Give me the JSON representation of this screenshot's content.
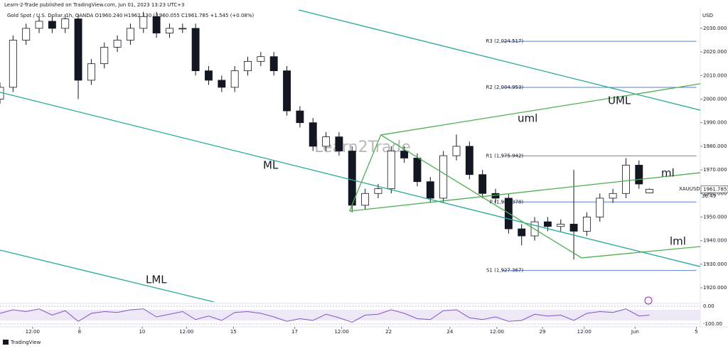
{
  "chart_data": {
    "type": "candlestick",
    "title": "Learn-2-Trade published on TradingView.com, Jun 01, 2023 13:23 UTC+3",
    "subtitle": "Gold Spot / U.S. Dollar, 1h, OANDA  O1960.240 H1962.130 L1960.055 C1961.785 +1.545 (+0.08%)",
    "watermark": "Learn2Trade",
    "currency": "USD",
    "symbol": "XAUUSD",
    "last_price": {
      "value": 1961.785,
      "label": "1961.785"
    },
    "countdown": "36:49",
    "footer": "TradingView",
    "xlim": [
      0,
      537
    ],
    "ylim": [
      1914,
      2039
    ],
    "yticks": [
      {
        "value": 1920,
        "label": "1920.000"
      },
      {
        "value": 1930,
        "label": "1930.000"
      },
      {
        "value": 1940,
        "label": "1940.000"
      },
      {
        "value": 1950,
        "label": "1950.000"
      },
      {
        "value": 1960,
        "label": "1960.000"
      },
      {
        "value": 1970,
        "label": "1970.000"
      },
      {
        "value": 1980,
        "label": "1980.000"
      },
      {
        "value": 1990,
        "label": "1990.000"
      },
      {
        "value": 2000,
        "label": "2000.000"
      },
      {
        "value": 2010,
        "label": "2010.000"
      },
      {
        "value": 2020,
        "label": "2020.000"
      },
      {
        "value": 2030,
        "label": "2030.000"
      }
    ],
    "xticks": [
      {
        "value": 25,
        "label": "12:00"
      },
      {
        "value": 61,
        "label": "8"
      },
      {
        "value": 109,
        "label": "10"
      },
      {
        "value": 143,
        "label": "12:00"
      },
      {
        "value": 179,
        "label": "15"
      },
      {
        "value": 226,
        "label": "17"
      },
      {
        "value": 262,
        "label": "12:00"
      },
      {
        "value": 298,
        "label": "22"
      },
      {
        "value": 345,
        "label": "24"
      },
      {
        "value": 381,
        "label": "12:00"
      },
      {
        "value": 416,
        "label": "29"
      },
      {
        "value": 448,
        "label": "12:00"
      },
      {
        "value": 487,
        "label": "Jun"
      },
      {
        "value": 534,
        "label": "5"
      }
    ],
    "x": [
      0,
      10,
      20,
      30,
      40,
      50,
      60,
      70,
      80,
      90,
      100,
      110,
      120,
      130,
      140,
      150,
      160,
      170,
      180,
      190,
      200,
      210,
      220,
      230,
      240,
      250,
      260,
      270,
      280,
      290,
      300,
      310,
      320,
      330,
      340,
      350,
      360,
      370,
      380,
      390,
      400,
      410,
      420,
      430,
      440,
      450,
      460,
      470,
      480,
      490,
      498
    ],
    "open": [
      2000,
      2005,
      2025,
      2030,
      2033,
      2030,
      2034,
      2008,
      2015,
      2022,
      2025,
      2030,
      2035,
      2028,
      2030,
      2030,
      2012,
      2008,
      2005,
      2012,
      2016,
      2018,
      2012,
      1995,
      1990,
      1980,
      1984,
      1978,
      1955,
      1960,
      1962,
      1978,
      1975,
      1965,
      1958,
      1976,
      1980,
      1968,
      1960,
      1958,
      1945,
      1942,
      1948,
      1946,
      1947,
      1944,
      1950,
      1958,
      1960,
      1972,
      1960.24
    ],
    "high": [
      2007,
      2027,
      2032,
      2035,
      2035,
      2036,
      2036,
      2017,
      2024,
      2027,
      2032,
      2037,
      2037,
      2032,
      2032,
      2032,
      2014,
      2010,
      2014,
      2018,
      2020,
      2020,
      2014,
      1997,
      1992,
      1986,
      1986,
      1980,
      1962,
      1964,
      1980,
      1980,
      1977,
      1967,
      1978,
      1985,
      1982,
      1970,
      1962,
      1960,
      1947,
      1950,
      1950,
      1949,
      1970,
      1952,
      1960,
      1962,
      1975,
      1974,
      1962.13
    ],
    "low": [
      1998,
      2003,
      2023,
      2028,
      2028,
      2028,
      2000,
      2006,
      2013,
      2020,
      2023,
      2028,
      2026,
      2026,
      2028,
      2010,
      2006,
      2003,
      2003,
      2010,
      2014,
      2010,
      1993,
      1988,
      1978,
      1978,
      1976,
      1952,
      1953,
      1958,
      1960,
      1973,
      1963,
      1956,
      1956,
      1974,
      1966,
      1958,
      1956,
      1943,
      1938,
      1940,
      1944,
      1944,
      1932,
      1942,
      1948,
      1956,
      1958,
      1962,
      1960.055
    ],
    "close": [
      2005,
      2025,
      2030,
      2033,
      2030,
      2034,
      2008,
      2015,
      2022,
      2025,
      2030,
      2035,
      2028,
      2030,
      2030,
      2012,
      2008,
      2005,
      2012,
      2016,
      2018,
      2012,
      1995,
      1990,
      1980,
      1984,
      1978,
      1955,
      1960,
      1962,
      1978,
      1975,
      1965,
      1958,
      1976,
      1980,
      1968,
      1960,
      1958,
      1945,
      1942,
      1948,
      1946,
      1947,
      1944,
      1950,
      1958,
      1960,
      1972,
      1964,
      1961.785
    ],
    "pivots": [
      {
        "label": "R3 (2,024.517)",
        "value": 2024.517
      },
      {
        "label": "R2 (2,004.953)",
        "value": 2004.953
      },
      {
        "label": "R1 (1,975.942)",
        "value": 1975.942
      },
      {
        "label": "P (1,956.378)",
        "value": 1956.378
      },
      {
        "label": "S1 (1,927.367)",
        "value": 1927.367
      }
    ],
    "pivot_start": 385,
    "pivot_end": 534,
    "trendlines": [
      {
        "label": "UML",
        "x": [
          229,
          537
        ],
        "y": [
          2037.8,
          1995.3
        ],
        "color": "#26a69a"
      },
      {
        "label": "uml",
        "x": [
          292,
          537
        ],
        "y": [
          1984.8,
          2006.5
        ],
        "color": "#4caf50"
      },
      {
        "label": "ML",
        "x": [
          0,
          537
        ],
        "y": [
          2002.9,
          1929
        ],
        "color": "#26a69a"
      },
      {
        "label": "ml",
        "x": [
          268,
          537
        ],
        "y": [
          1952.5,
          1968.8
        ],
        "color": "#4caf50"
      },
      {
        "label": "LML",
        "x": [
          0,
          164
        ],
        "y": [
          1936,
          1914
        ],
        "color": "#26a69a"
      },
      {
        "label": "lml",
        "x": [
          446,
          537
        ],
        "y": [
          1932.7,
          1937.5
        ],
        "color": "#4caf50"
      },
      {
        "x": [
          292,
          446
        ],
        "y": [
          1984.8,
          1932.7
        ],
        "color": "#4caf50"
      },
      {
        "x": [
          268,
          292
        ],
        "y": [
          1952.5,
          1984.8
        ],
        "color": "#4caf50"
      }
    ],
    "indicator": {
      "ylim": [
        -100,
        0
      ],
      "yticks": [
        {
          "value": 0,
          "label": "0.00"
        },
        {
          "value": -100,
          "label": "-100.00"
        }
      ],
      "band": [
        -80,
        -20
      ],
      "color": "#7e57c2",
      "values": [
        -40,
        -20,
        -30,
        -15,
        -50,
        -25,
        -85,
        -40,
        -30,
        -35,
        -20,
        -15,
        -60,
        -45,
        -30,
        -75,
        -55,
        -80,
        -35,
        -30,
        -40,
        -60,
        -85,
        -70,
        -80,
        -45,
        -65,
        -90,
        -50,
        -45,
        -20,
        -40,
        -70,
        -75,
        -25,
        -20,
        -65,
        -75,
        -60,
        -85,
        -80,
        -45,
        -55,
        -50,
        -80,
        -40,
        -30,
        -35,
        -15,
        -55,
        -50
      ]
    }
  }
}
